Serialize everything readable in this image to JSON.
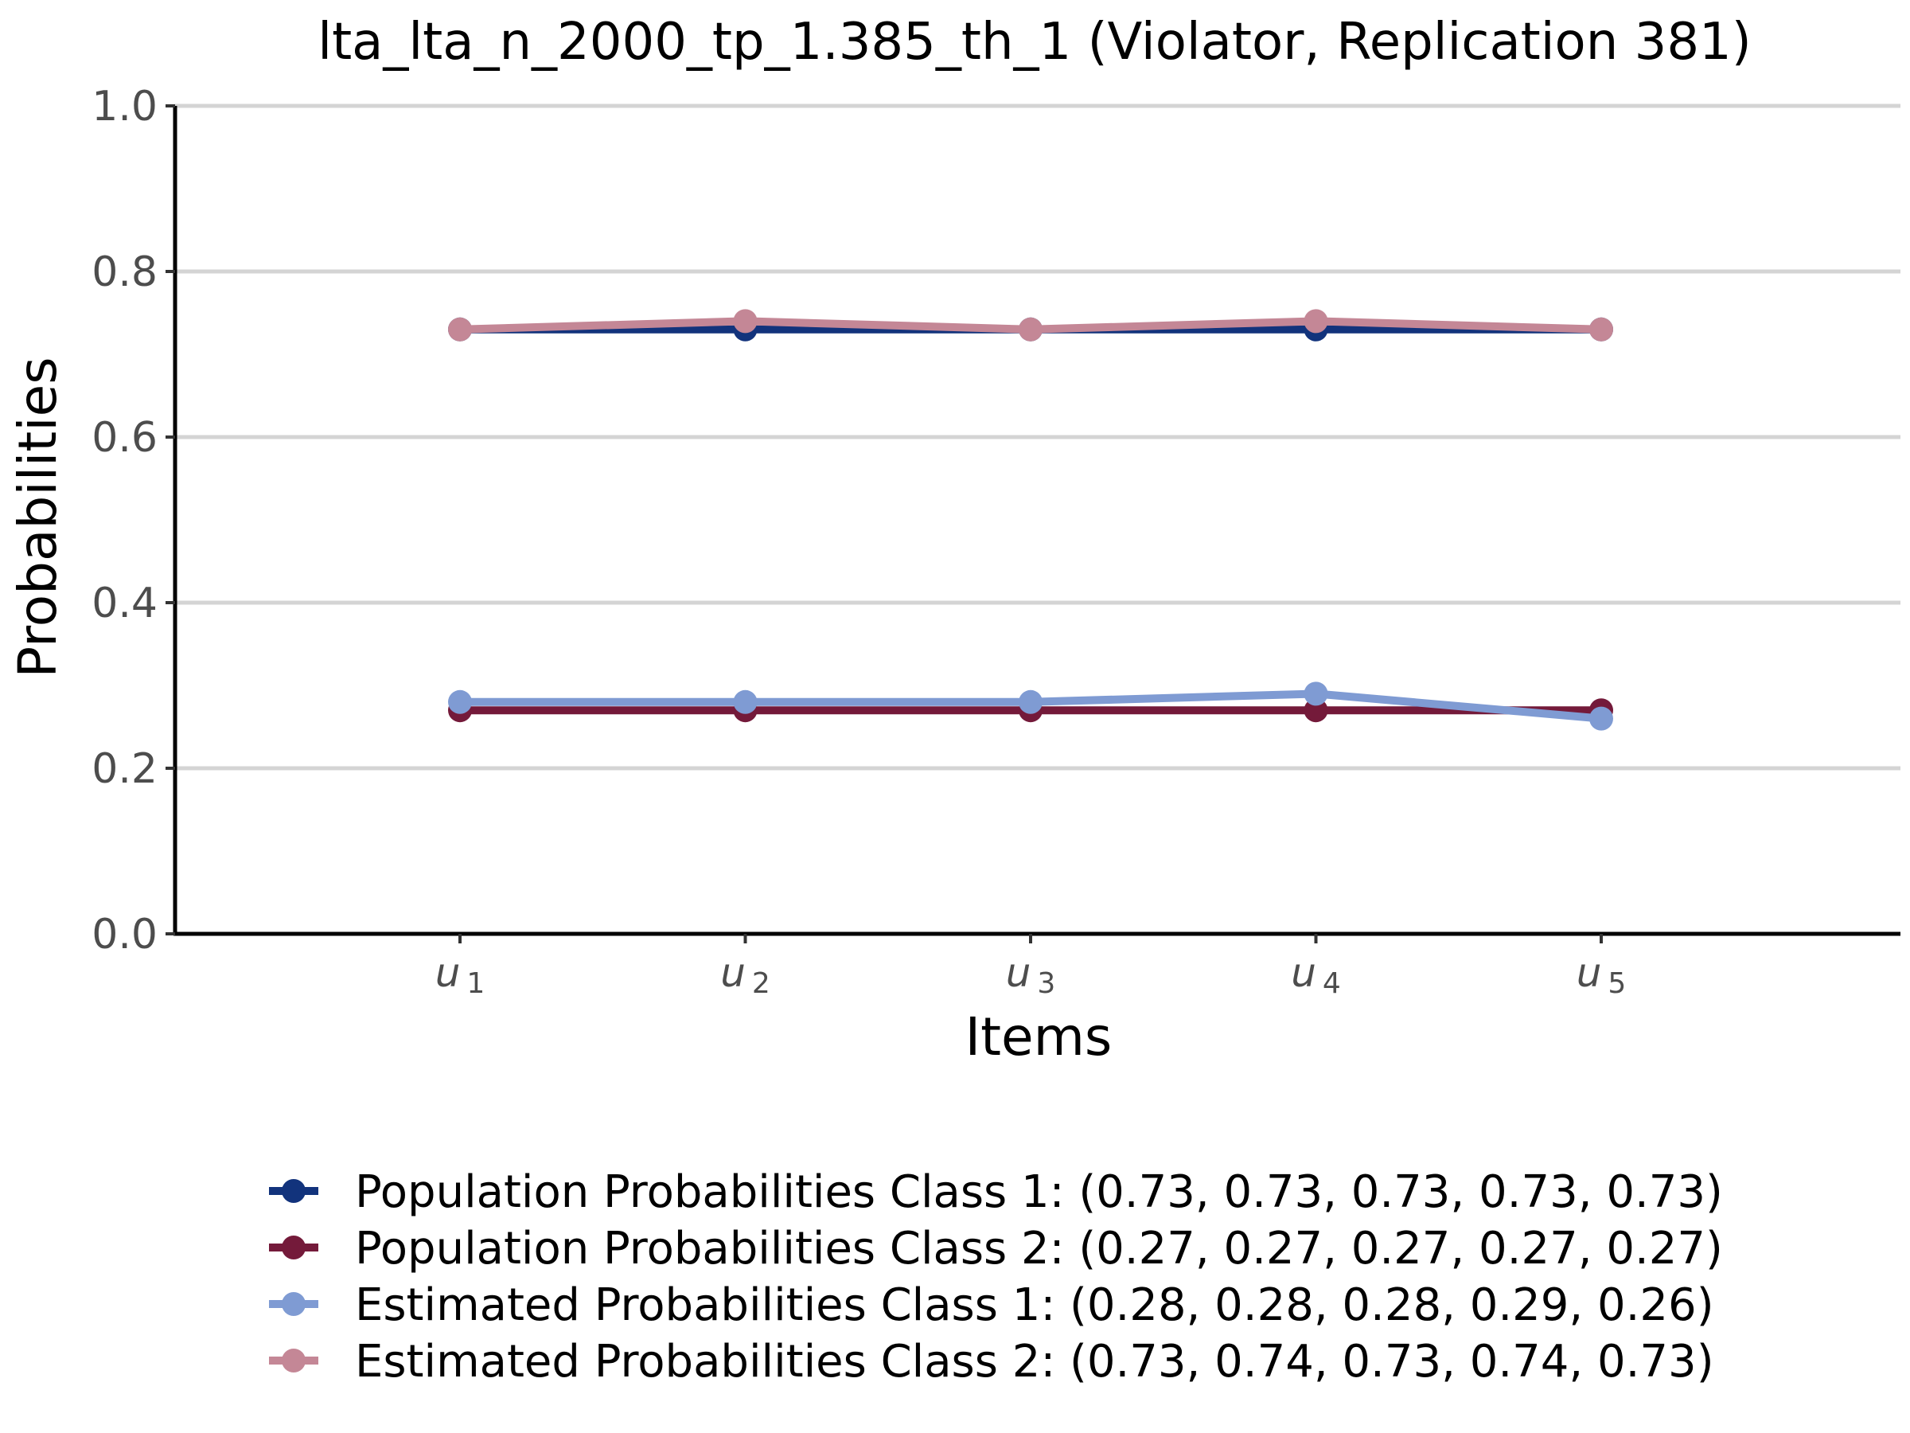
{
  "chart_data": {
    "type": "line",
    "title": "lta_lta_n_2000_tp_1.385_th_1 (Violator, Replication 381)",
    "xlabel": "Items",
    "ylabel": "Probabilities",
    "categories": [
      {
        "base": "u",
        "sub": "1"
      },
      {
        "base": "u",
        "sub": "2"
      },
      {
        "base": "u",
        "sub": "3"
      },
      {
        "base": "u",
        "sub": "4"
      },
      {
        "base": "u",
        "sub": "5"
      }
    ],
    "ylim": [
      0,
      1
    ],
    "yticks": [
      "0.0",
      "0.2",
      "0.4",
      "0.6",
      "0.8",
      "1.0"
    ],
    "grid": "horizontal",
    "legend_position": "bottom",
    "series": [
      {
        "name": "Population Probabilities Class 1: (0.73, 0.73, 0.73, 0.73, 0.73)",
        "color": "#12337c",
        "values": [
          0.73,
          0.73,
          0.73,
          0.73,
          0.73
        ]
      },
      {
        "name": "Population Probabilities Class 2: (0.27, 0.27, 0.27, 0.27, 0.27)",
        "color": "#741a3a",
        "values": [
          0.27,
          0.27,
          0.27,
          0.27,
          0.27
        ]
      },
      {
        "name": "Estimated Probabilities Class 1: (0.28, 0.28, 0.28, 0.29, 0.26)",
        "color": "#7f9bd3",
        "values": [
          0.28,
          0.28,
          0.28,
          0.29,
          0.26
        ]
      },
      {
        "name": "Estimated Probabilities Class 2: (0.73, 0.74, 0.73, 0.74, 0.73)",
        "color": "#c48796",
        "values": [
          0.73,
          0.74,
          0.73,
          0.74,
          0.73
        ]
      }
    ]
  }
}
